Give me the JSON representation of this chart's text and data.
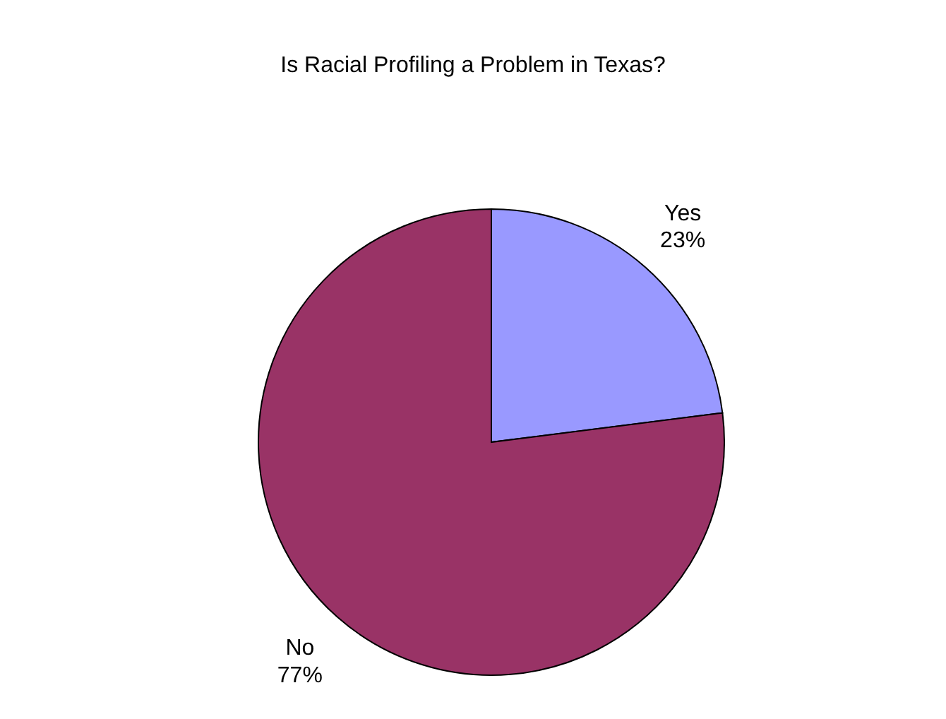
{
  "chart_data": {
    "type": "pie",
    "title": "Is Racial Profiling a Problem in Texas?",
    "categories": [
      "Yes",
      "No"
    ],
    "values": [
      23,
      77
    ],
    "colors": [
      "#9999ff",
      "#993366"
    ],
    "value_labels": [
      "23%",
      "77%"
    ],
    "legend": false
  }
}
